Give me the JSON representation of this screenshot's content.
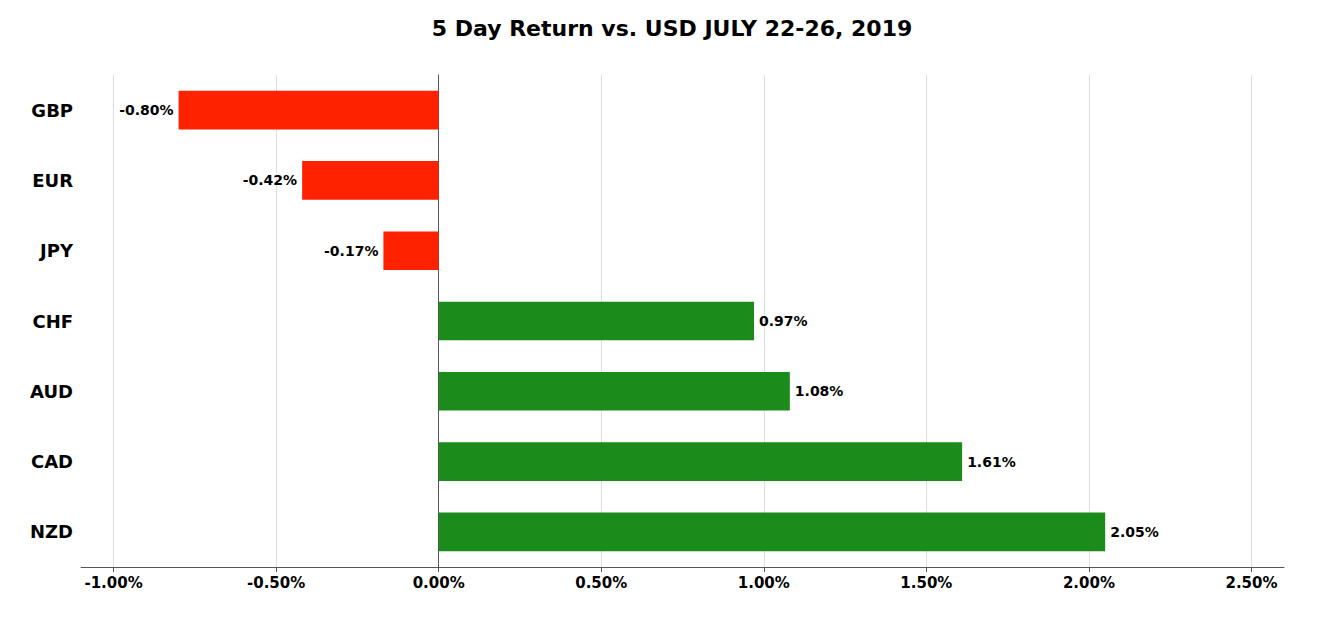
{
  "chart_data": {
    "type": "bar",
    "orientation": "horizontal",
    "title": "5 Day Return vs. USD JULY 22-26, 2019",
    "categories": [
      "GBP",
      "EUR",
      "JPY",
      "CHF",
      "AUD",
      "CAD",
      "NZD"
    ],
    "values": [
      -0.8,
      -0.42,
      -0.17,
      0.97,
      1.08,
      1.61,
      2.05
    ],
    "value_labels": [
      "-0.80%",
      "-0.42%",
      "-0.17%",
      "0.97%",
      "1.08%",
      "1.61%",
      "2.05%"
    ],
    "data_labels": true,
    "colors": [
      "#FF2200",
      "#FF2200",
      "#FF2200",
      "#1B8B1B",
      "#1B8B1B",
      "#1B8B1B",
      "#1B8B1B"
    ],
    "xlim": [
      -1.1,
      2.6
    ],
    "xticks": [
      {
        "value": -1.0,
        "label": "-1.00%"
      },
      {
        "value": -0.5,
        "label": "-0.50%"
      },
      {
        "value": 0.0,
        "label": "0.00%"
      },
      {
        "value": 0.5,
        "label": "0.50%"
      },
      {
        "value": 1.0,
        "label": "1.00%"
      },
      {
        "value": 1.5,
        "label": "1.50%"
      },
      {
        "value": 2.0,
        "label": "2.00%"
      },
      {
        "value": 2.5,
        "label": "2.50%"
      }
    ],
    "grid": true
  }
}
